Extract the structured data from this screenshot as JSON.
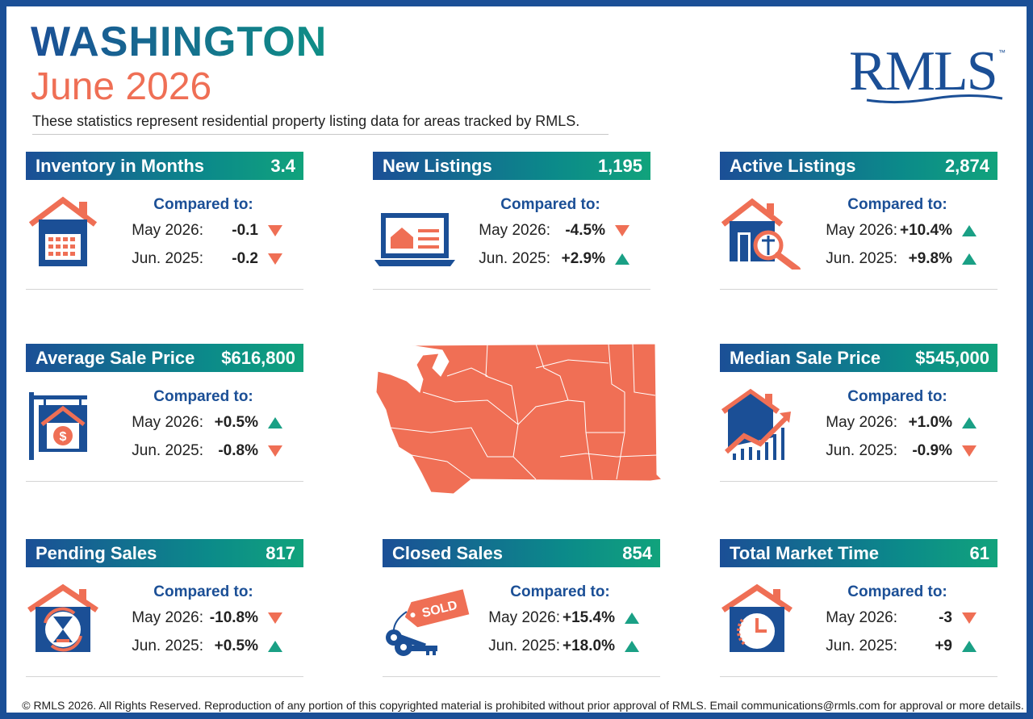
{
  "header": {
    "state": "WASHINGTON",
    "period": "June 2026",
    "intro": "These statistics represent residential property listing data for areas tracked by RMLS."
  },
  "logo": {
    "text": "RMLS",
    "tm": "™"
  },
  "colors": {
    "brand_blue": "#1b4f96",
    "teal": "#0f8f86",
    "accent_coral": "#ef6f55",
    "up_green": "#1aa085",
    "down_coral": "#ef6f55"
  },
  "compared_label": "Compared to:",
  "cards": [
    {
      "title": "Inventory in Months",
      "value": "3.4",
      "icon": "house-calendar-icon",
      "rows": [
        {
          "label": "May 2026:",
          "value": "-0.1",
          "dir": "down"
        },
        {
          "label": "Jun. 2025:",
          "value": "-0.2",
          "dir": "down"
        }
      ]
    },
    {
      "title": "New Listings",
      "value": "1,195",
      "icon": "laptop-listing-icon",
      "rows": [
        {
          "label": "May 2026:",
          "value": "-4.5%",
          "dir": "down"
        },
        {
          "label": "Jun. 2025:",
          "value": "+2.9%",
          "dir": "up"
        }
      ]
    },
    {
      "title": "Active Listings",
      "value": "2,874",
      "icon": "house-magnifier-icon",
      "rows": [
        {
          "label": "May 2026:",
          "value": "+10.4%",
          "dir": "up"
        },
        {
          "label": "Jun. 2025:",
          "value": "+9.8%",
          "dir": "up"
        }
      ]
    },
    {
      "title": "Average Sale Price",
      "value": "$616,800",
      "icon": "house-sign-dollar-icon",
      "rows": [
        {
          "label": "May 2026:",
          "value": "+0.5%",
          "dir": "up"
        },
        {
          "label": "Jun. 2025:",
          "value": "-0.8%",
          "dir": "down"
        }
      ]
    },
    {
      "title": "Median Sale Price",
      "value": "$545,000",
      "icon": "house-chart-icon",
      "rows": [
        {
          "label": "May 2026:",
          "value": "+1.0%",
          "dir": "up"
        },
        {
          "label": "Jun. 2025:",
          "value": "-0.9%",
          "dir": "down"
        }
      ]
    },
    {
      "title": "Pending Sales",
      "value": "817",
      "icon": "house-hourglass-icon",
      "rows": [
        {
          "label": "May 2026:",
          "value": "-10.8%",
          "dir": "down"
        },
        {
          "label": "Jun. 2025:",
          "value": "+0.5%",
          "dir": "up"
        }
      ]
    },
    {
      "title": "Closed Sales",
      "value": "854",
      "icon": "sold-keys-icon",
      "rows": [
        {
          "label": "May 2026:",
          "value": "+15.4%",
          "dir": "up"
        },
        {
          "label": "Jun. 2025:",
          "value": "+18.0%",
          "dir": "up"
        }
      ]
    },
    {
      "title": "Total Market Time",
      "value": "61",
      "icon": "house-clock-icon",
      "rows": [
        {
          "label": "May 2026:",
          "value": "-3",
          "dir": "down"
        },
        {
          "label": "Jun. 2025:",
          "value": "+9",
          "dir": "up"
        }
      ]
    }
  ],
  "sold_tag": "SOLD",
  "map": {
    "icon": "washington-state-map"
  },
  "footer": "© RMLS 2026. All Rights Reserved. Reproduction of any portion of this copyrighted material is prohibited without prior approval of RMLS. Email communications@rmls.com for approval or more details."
}
